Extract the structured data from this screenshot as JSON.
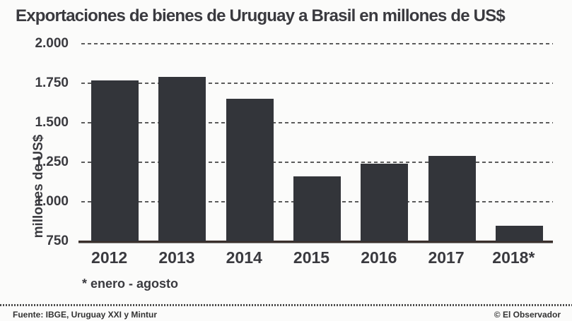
{
  "title": "Exportaciones de bienes de Uruguay a Brasil en millones de US$",
  "chart_data": {
    "type": "bar",
    "title": "Exportaciones de bienes de Uruguay a Brasil en millones de US$",
    "categories": [
      "2012",
      "2013",
      "2014",
      "2015",
      "2016",
      "2017",
      "2018*"
    ],
    "values": [
      1770,
      1790,
      1650,
      1160,
      1240,
      1290,
      850
    ],
    "xlabel": "",
    "ylabel": "millones de US$",
    "ylim": [
      750,
      2000
    ],
    "yticks": [
      2000,
      1750,
      1500,
      1250,
      1000,
      750
    ],
    "ytick_labels": [
      "2.000",
      "1.750",
      "1.500",
      "1.250",
      "1.000",
      "750"
    ],
    "grid": "horizontal-dashed",
    "legend": "none",
    "bar_color": "#33353a",
    "grid_color": "#5c5c5c",
    "baseline_color": "#3a2f2b"
  },
  "footnote": "* enero - agosto",
  "footer": {
    "source": "Fuente: IBGE, Uruguay XXI y Mintur",
    "credit": "© El Observador"
  },
  "colors": {
    "background": "#fbfbfa",
    "text": "#3a3a3f"
  }
}
